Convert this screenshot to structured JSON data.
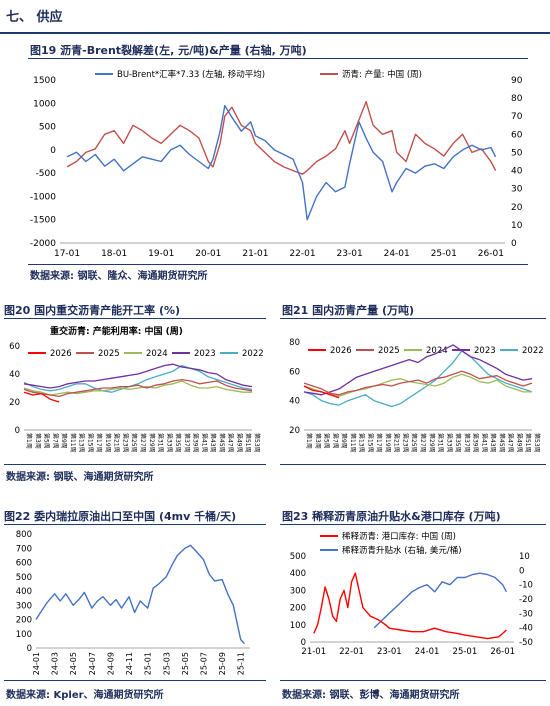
{
  "section_title": "七、 供应",
  "figures": [
    {
      "title": "图19 沥青-Brent裂解差(左, 元/吨)&产量 (右轴, 万吨)",
      "source": "数据来源: 钢联、隆众、海通期货研究所"
    },
    {
      "title": "图20 国内重交沥青产能开工率 (%)",
      "source": "数据来源: 钢联、海通期货研究所"
    },
    {
      "title": "图21 国内沥青产量 (万吨)",
      "source": ""
    },
    {
      "title": "图22 委内瑞拉原油出口至中国 (4mv 千桶/天)",
      "source": "数据来源: Kpler、海通期货研究所"
    },
    {
      "title": "图23 稀释沥青原油升贴水&港口库存 (万吨)",
      "source": "数据来源: 钢联、彭博、海通期货研究所"
    }
  ],
  "colors": {
    "blue": "#4472c4",
    "red": "#c0504d",
    "orange": "#ed7d31",
    "green": "#9bbb59",
    "purple": "#7030a0",
    "cyan": "#4bacc6",
    "bright_red": "#ff0000",
    "title_navy": "#1f2d5a"
  },
  "chart_data": [
    {
      "id": "fig19",
      "type": "line",
      "series": [
        {
          "name": "BU-Brent*汇率*7.33 (左轴, 移动平均)",
          "axis": "left",
          "color": "#4472c4",
          "x": [
            2017.0,
            2017.2,
            2017.4,
            2017.6,
            2017.8,
            2018.0,
            2018.2,
            2018.4,
            2018.6,
            2018.8,
            2019.0,
            2019.2,
            2019.4,
            2019.6,
            2019.8,
            2020.0,
            2020.1,
            2020.25,
            2020.35,
            2020.5,
            2020.7,
            2020.9,
            2021.0,
            2021.2,
            2021.4,
            2021.6,
            2021.8,
            2022.0,
            2022.1,
            2022.3,
            2022.5,
            2022.7,
            2022.9,
            2023.0,
            2023.2,
            2023.35,
            2023.5,
            2023.7,
            2023.9,
            2024.0,
            2024.2,
            2024.4,
            2024.6,
            2024.8,
            2025.0,
            2025.2,
            2025.4,
            2025.6,
            2025.8,
            2026.0,
            2026.1
          ],
          "y": [
            -150,
            -50,
            -250,
            -100,
            -350,
            -200,
            -450,
            -300,
            -150,
            -200,
            -250,
            0,
            100,
            -100,
            -250,
            -400,
            -200,
            400,
            950,
            700,
            400,
            600,
            300,
            200,
            0,
            -100,
            -200,
            -700,
            -1500,
            -1000,
            -700,
            -900,
            -800,
            -300,
            600,
            250,
            -50,
            -250,
            -900,
            -700,
            -400,
            -500,
            -350,
            -300,
            -400,
            -150,
            0,
            100,
            0,
            50,
            -150
          ]
        },
        {
          "name": "沥青: 产量: 中国 (周)",
          "axis": "right",
          "color": "#c0504d",
          "x": [
            2017.0,
            2017.2,
            2017.4,
            2017.6,
            2017.8,
            2018.0,
            2018.2,
            2018.4,
            2018.6,
            2018.8,
            2019.0,
            2019.2,
            2019.4,
            2019.6,
            2019.8,
            2020.0,
            2020.1,
            2020.25,
            2020.35,
            2020.5,
            2020.7,
            2020.9,
            2021.0,
            2021.2,
            2021.4,
            2021.6,
            2021.8,
            2022.0,
            2022.1,
            2022.3,
            2022.5,
            2022.7,
            2022.9,
            2023.0,
            2023.2,
            2023.35,
            2023.5,
            2023.7,
            2023.9,
            2024.0,
            2024.2,
            2024.4,
            2024.6,
            2024.8,
            2025.0,
            2025.2,
            2025.4,
            2025.6,
            2025.8,
            2026.0,
            2026.1
          ],
          "y": [
            42,
            45,
            50,
            52,
            60,
            62,
            55,
            65,
            62,
            58,
            55,
            60,
            65,
            62,
            58,
            45,
            42,
            55,
            70,
            75,
            65,
            62,
            55,
            50,
            45,
            42,
            40,
            38,
            40,
            45,
            48,
            52,
            62,
            55,
            68,
            78,
            65,
            60,
            62,
            50,
            45,
            60,
            55,
            52,
            48,
            55,
            60,
            50,
            52,
            45,
            40
          ]
        }
      ],
      "x_ticks": [
        "17-01",
        "18-01",
        "19-01",
        "20-01",
        "21-01",
        "22-01",
        "23-01",
        "24-01",
        "25-01",
        "26-01"
      ],
      "y_left": {
        "min": -2000,
        "max": 1500,
        "ticks": [
          -2000,
          -1500,
          -1000,
          -500,
          0,
          500,
          1000,
          1500
        ]
      },
      "y_right": {
        "min": 0,
        "max": 90,
        "ticks": [
          0,
          10,
          20,
          30,
          40,
          50,
          60,
          70,
          80,
          90
        ]
      }
    },
    {
      "id": "fig20",
      "type": "line",
      "title": "重交沥青: 产能利用率: 中国 (周)",
      "y": {
        "min": 0,
        "max": 60,
        "ticks": [
          0,
          20,
          40,
          60
        ]
      },
      "x_categories": [
        "第1周",
        "第3周",
        "第5周",
        "第7周",
        "第9周",
        "第11周",
        "第13周",
        "第15周",
        "第17周",
        "第19周",
        "第21周",
        "第23周",
        "第25周",
        "第27周",
        "第29周",
        "第31周",
        "第33周",
        "第35周",
        "第37周",
        "第39周",
        "第41周",
        "第43周",
        "第45周",
        "第47周",
        "第49周",
        "第51周",
        "第53周"
      ],
      "series": [
        {
          "name": "2026",
          "color": "#ff0000",
          "values": [
            27,
            25,
            26,
            22,
            20
          ]
        },
        {
          "name": "2025",
          "color": "#c0504d",
          "values": [
            29,
            27,
            26,
            25,
            24,
            26,
            27,
            28,
            29,
            30,
            30,
            31,
            31,
            32,
            30,
            32,
            33,
            35,
            36,
            35,
            33,
            34,
            35,
            32,
            30,
            29,
            28
          ]
        },
        {
          "name": "2024",
          "color": "#9bbb59",
          "values": [
            30,
            28,
            27,
            25,
            26,
            27,
            26,
            27,
            28,
            28,
            29,
            30,
            29,
            30,
            31,
            30,
            32,
            33,
            35,
            32,
            30,
            30,
            31,
            29,
            28,
            27,
            27
          ]
        },
        {
          "name": "2023",
          "color": "#7030a0",
          "values": [
            33,
            32,
            31,
            30,
            31,
            33,
            34,
            35,
            35,
            36,
            37,
            38,
            39,
            40,
            42,
            44,
            46,
            47,
            45,
            44,
            43,
            41,
            40,
            36,
            34,
            32,
            31
          ]
        },
        {
          "name": "2022",
          "color": "#4bacc6",
          "values": [
            34,
            31,
            29,
            28,
            29,
            31,
            33,
            33,
            30,
            28,
            27,
            29,
            31,
            33,
            36,
            38,
            40,
            42,
            46,
            44,
            42,
            38,
            36,
            34,
            32,
            30,
            29
          ]
        }
      ]
    },
    {
      "id": "fig21",
      "type": "line",
      "y": {
        "min": 20,
        "max": 80,
        "ticks": [
          20,
          40,
          60,
          80
        ]
      },
      "x_categories": [
        "第1周",
        "第3周",
        "第5周",
        "第7周",
        "第9周",
        "第11周",
        "第13周",
        "第15周",
        "第17周",
        "第19周",
        "第21周",
        "第23周",
        "第25周",
        "第27周",
        "第29周",
        "第31周",
        "第33周",
        "第35周",
        "第37周",
        "第39周",
        "第41周",
        "第43周",
        "第45周",
        "第47周",
        "第49周",
        "第51周",
        "第53周"
      ],
      "series": [
        {
          "name": "2026",
          "color": "#ff0000",
          "values": [
            50,
            47,
            46,
            44,
            42
          ]
        },
        {
          "name": "2025",
          "color": "#c0504d",
          "values": [
            52,
            50,
            48,
            45,
            44,
            46,
            47,
            49,
            50,
            51,
            50,
            52,
            53,
            54,
            52,
            55,
            56,
            58,
            60,
            58,
            55,
            56,
            57,
            54,
            52,
            50,
            52
          ]
        },
        {
          "name": "2024",
          "color": "#9bbb59",
          "values": [
            50,
            48,
            46,
            44,
            43,
            45,
            47,
            48,
            50,
            52,
            54,
            55,
            53,
            52,
            51,
            50,
            52,
            56,
            58,
            56,
            53,
            52,
            54,
            50,
            48,
            46,
            46
          ]
        },
        {
          "name": "2023",
          "color": "#7030a0",
          "values": [
            46,
            45,
            44,
            46,
            48,
            52,
            56,
            58,
            60,
            62,
            64,
            66,
            68,
            66,
            70,
            72,
            75,
            78,
            74,
            70,
            68,
            65,
            62,
            58,
            56,
            54,
            55
          ]
        },
        {
          "name": "2022",
          "color": "#4bacc6",
          "values": [
            46,
            44,
            40,
            38,
            37,
            40,
            42,
            44,
            40,
            38,
            36,
            38,
            42,
            46,
            50,
            54,
            60,
            66,
            74,
            70,
            64,
            58,
            55,
            52,
            50,
            48,
            46
          ]
        }
      ]
    },
    {
      "id": "fig22",
      "type": "line",
      "y": {
        "min": 0,
        "max": 800,
        "ticks": [
          0,
          100,
          200,
          300,
          400,
          500,
          600,
          700,
          800
        ]
      },
      "x_ticks": [
        "24-01",
        "24-03",
        "24-05",
        "24-07",
        "24-09",
        "24-11",
        "25-01",
        "25-03",
        "25-05",
        "25-07",
        "25-09",
        "25-11"
      ],
      "series": [
        {
          "name": "",
          "color": "#4472c4",
          "x": [
            0,
            0.3,
            0.6,
            1,
            1.3,
            1.6,
            2,
            2.3,
            2.6,
            3,
            3.3,
            3.6,
            4,
            4.3,
            4.6,
            5,
            5.3,
            5.6,
            6,
            6.3,
            6.6,
            7,
            7.3,
            7.6,
            8,
            8.3,
            8.6,
            9,
            9.3,
            9.6,
            10,
            10.3,
            10.6,
            11,
            11.2
          ],
          "y": [
            200,
            260,
            320,
            380,
            330,
            380,
            300,
            340,
            390,
            280,
            330,
            360,
            300,
            340,
            280,
            360,
            250,
            330,
            280,
            420,
            450,
            500,
            580,
            650,
            700,
            720,
            680,
            620,
            520,
            470,
            480,
            380,
            300,
            60,
            30
          ]
        }
      ]
    },
    {
      "id": "fig23",
      "type": "line",
      "y_left": {
        "min": 0,
        "max": 500,
        "ticks": [
          0,
          100,
          200,
          300,
          400,
          500
        ]
      },
      "y_right": {
        "min": -50,
        "max": 10,
        "ticks": [
          -50,
          -40,
          -30,
          -20,
          -10,
          0,
          10
        ]
      },
      "x_ticks": [
        "21-01",
        "22-01",
        "23-01",
        "24-01",
        "25-01",
        "26-01"
      ],
      "series": [
        {
          "name": "稀释沥青: 港口库存: 中国 (周)",
          "axis": "left",
          "color": "#ff0000",
          "x": [
            2021.0,
            2021.1,
            2021.2,
            2021.3,
            2021.4,
            2021.5,
            2021.6,
            2021.7,
            2021.8,
            2021.9,
            2022.0,
            2022.1,
            2022.2,
            2022.3,
            2022.5,
            2022.7,
            2022.9,
            2023.0,
            2023.3,
            2023.6,
            2023.9,
            2024.2,
            2024.5,
            2024.8,
            2025.0,
            2025.3,
            2025.6,
            2025.9,
            2026.0,
            2026.1
          ],
          "y": [
            50,
            100,
            200,
            320,
            250,
            150,
            120,
            250,
            300,
            200,
            350,
            400,
            300,
            200,
            150,
            130,
            100,
            80,
            70,
            60,
            60,
            80,
            60,
            50,
            40,
            30,
            20,
            30,
            50,
            70
          ]
        },
        {
          "name": "稀释沥青升贴水 (右轴, 美元/桶)",
          "axis": "right",
          "color": "#4472c4",
          "x": [
            2022.6,
            2022.8,
            2023.0,
            2023.2,
            2023.4,
            2023.6,
            2023.8,
            2024.0,
            2024.2,
            2024.4,
            2024.6,
            2024.8,
            2025.0,
            2025.2,
            2025.4,
            2025.6,
            2025.8,
            2026.0,
            2026.1
          ],
          "y": [
            -40,
            -35,
            -30,
            -25,
            -20,
            -15,
            -12,
            -10,
            -15,
            -8,
            -10,
            -5,
            -5,
            -3,
            -2,
            -3,
            -5,
            -10,
            -15
          ]
        }
      ]
    }
  ]
}
